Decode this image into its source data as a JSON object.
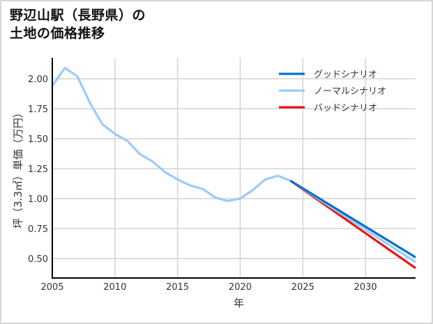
{
  "title": "野辺山駅（長野県）の\n土地の価格推移",
  "chart_data": {
    "type": "line",
    "title": "野辺山駅（長野県）の土地の価格推移",
    "xlabel": "年",
    "ylabel": "坪（3.3㎡）単価（万円）",
    "xlim": [
      2005,
      2034
    ],
    "ylim": [
      0.34,
      2.17
    ],
    "xticks": [
      2005,
      2010,
      2015,
      2020,
      2025,
      2030
    ],
    "yticks": [
      0.5,
      0.75,
      1.0,
      1.25,
      1.5,
      1.75,
      2.0
    ],
    "ytick_labels": [
      "0.50",
      "0.75",
      "1.00",
      "1.25",
      "1.50",
      "1.75",
      "2.00"
    ],
    "grid": true,
    "legend_position": "upper right",
    "series": [
      {
        "name": "グッドシナリオ",
        "color": "#0a6fc9",
        "x": [
          2024,
          2034
        ],
        "values": [
          1.15,
          0.51
        ]
      },
      {
        "name": "ノーマルシナリオ",
        "color": "#99ccff",
        "x": [
          2005,
          2006,
          2007,
          2008,
          2009,
          2010,
          2011,
          2012,
          2013,
          2014,
          2015,
          2016,
          2017,
          2018,
          2019,
          2020,
          2021,
          2022,
          2023,
          2024,
          2034
        ],
        "values": [
          1.94,
          2.09,
          2.02,
          1.8,
          1.62,
          1.54,
          1.48,
          1.37,
          1.31,
          1.22,
          1.16,
          1.11,
          1.08,
          1.01,
          0.98,
          1.0,
          1.07,
          1.16,
          1.19,
          1.15,
          0.47
        ]
      },
      {
        "name": "バッドシナリオ",
        "color": "#ee1111",
        "x": [
          2024,
          2034
        ],
        "values": [
          1.15,
          0.42
        ]
      }
    ]
  }
}
